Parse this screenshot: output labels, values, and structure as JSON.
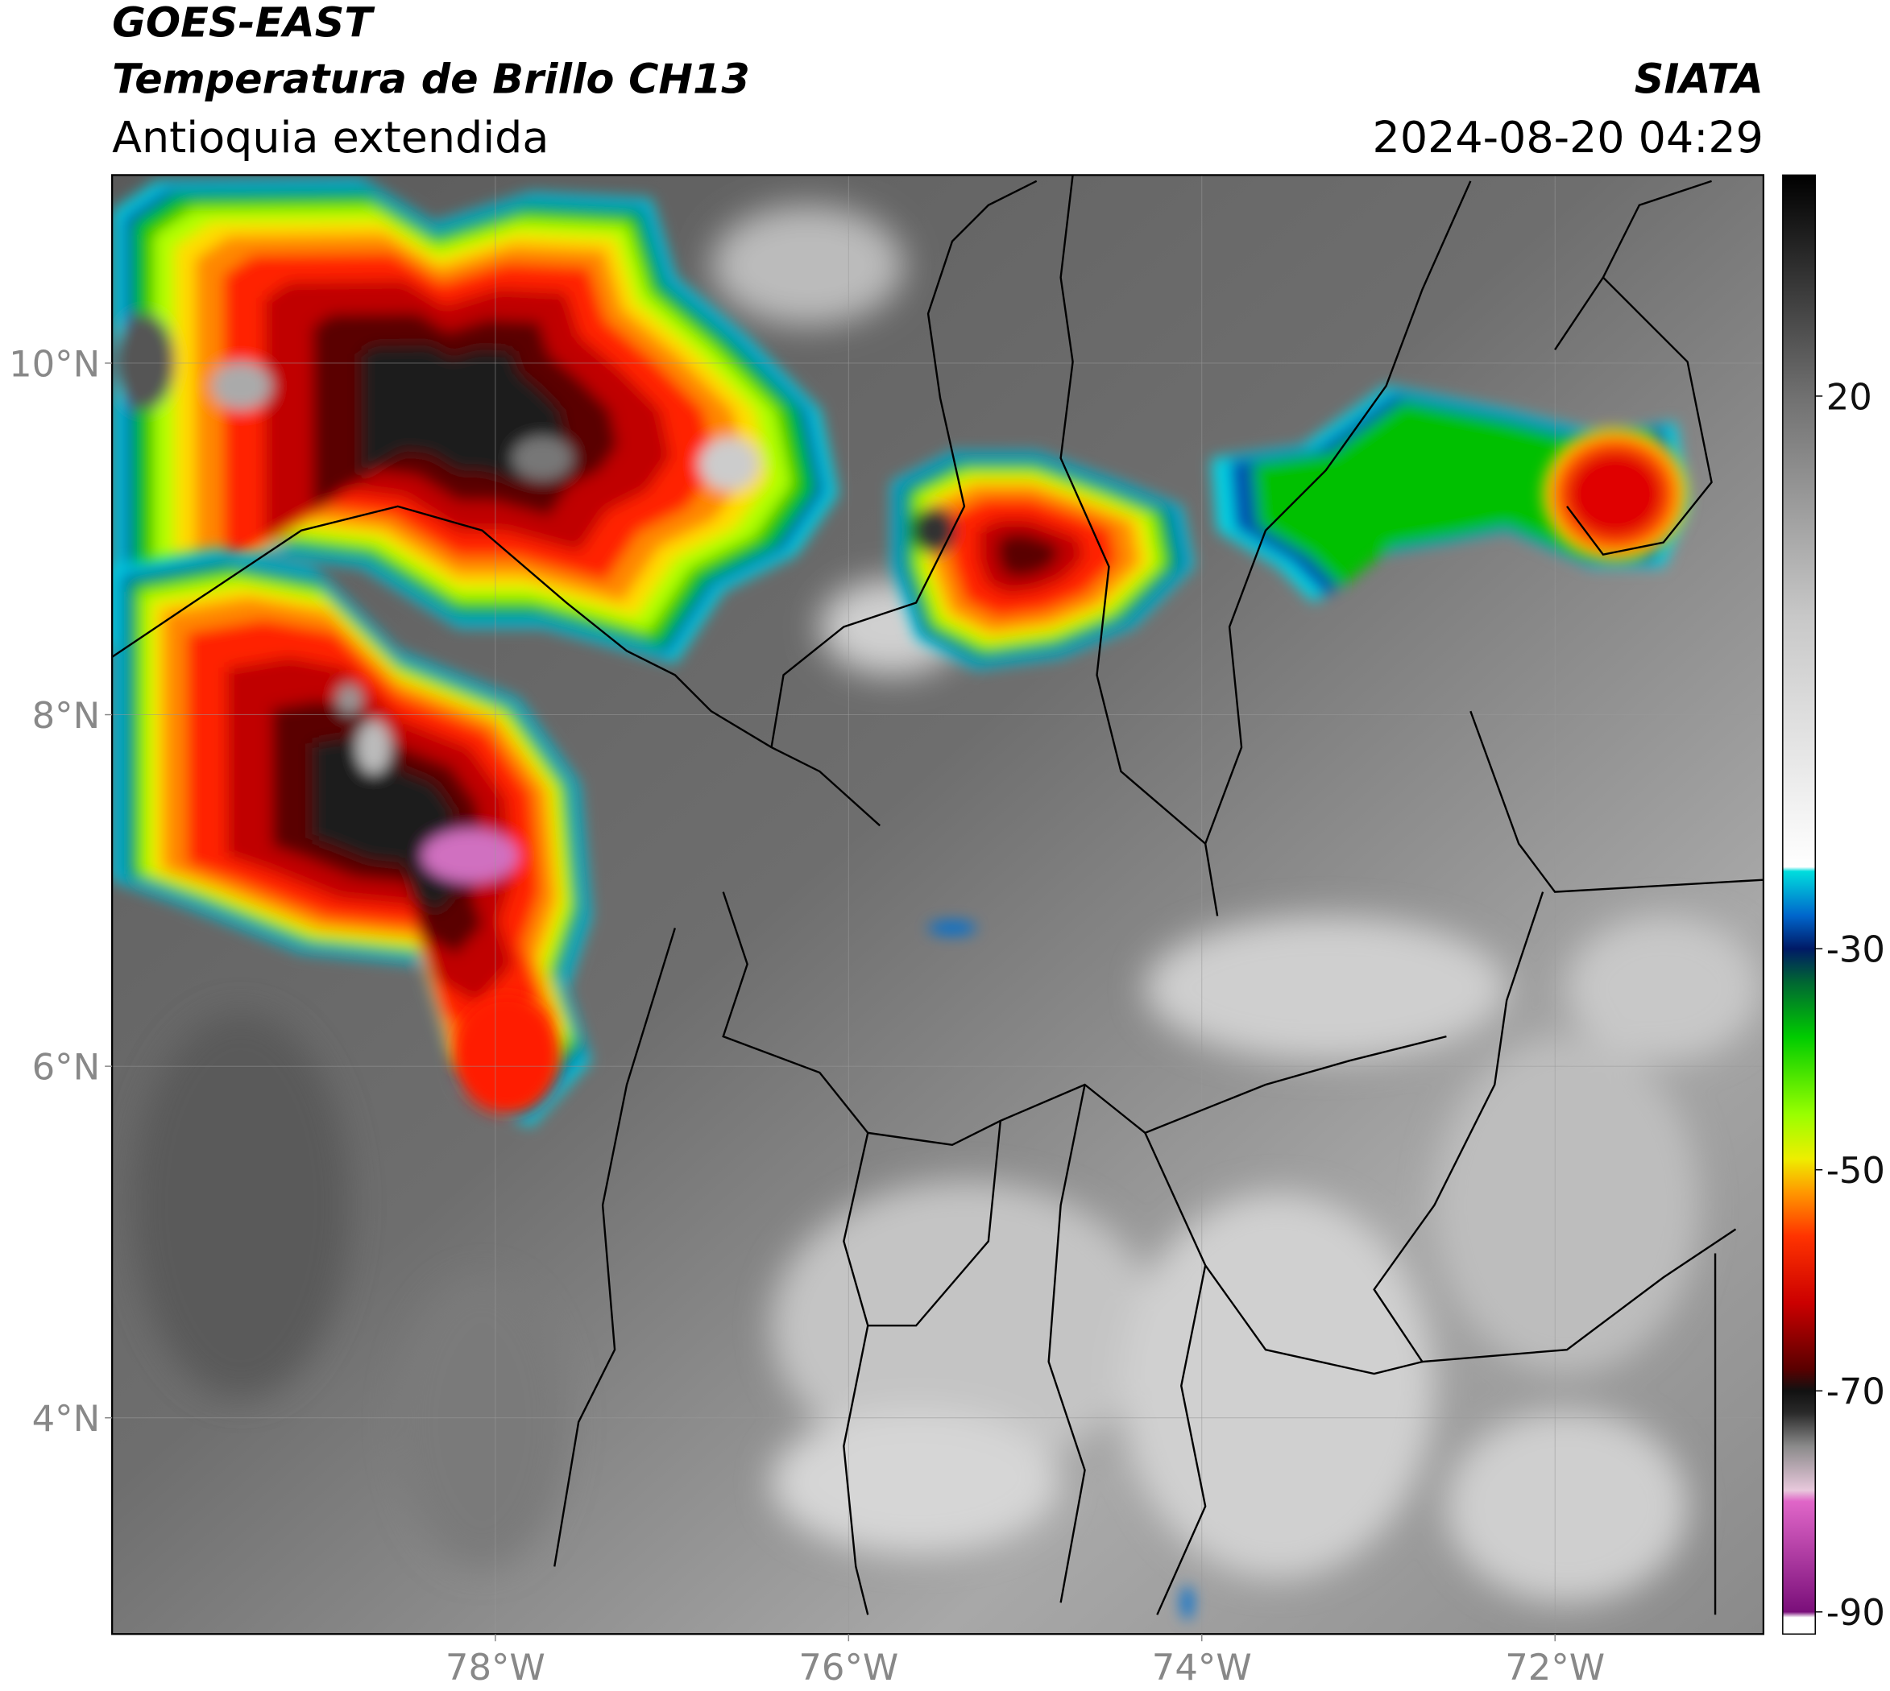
{
  "header": {
    "satellite": "GOES-EAST",
    "product": "Temperatura de Brillo CH13",
    "region": "Antioquia extendida",
    "agency": "SIATA",
    "datetime": "2024-08-20 04:29"
  },
  "map": {
    "xlim": [
      -80.17,
      -70.82
    ],
    "ylim": [
      2.77,
      11.07
    ],
    "xticks": [
      {
        "value": -78,
        "label": "78°W"
      },
      {
        "value": -76,
        "label": "76°W"
      },
      {
        "value": -74,
        "label": "74°W"
      },
      {
        "value": -72,
        "label": "72°W"
      }
    ],
    "yticks": [
      {
        "value": 4,
        "label": "4°N"
      },
      {
        "value": 6,
        "label": "6°N"
      },
      {
        "value": 8,
        "label": "8°N"
      },
      {
        "value": 10,
        "label": "10°N"
      }
    ],
    "grid": true
  },
  "colorbar": {
    "lim": [
      -92,
      40
    ],
    "ticks": [
      20,
      -30,
      -50,
      -70,
      -90
    ],
    "stops": [
      [
        -92,
        "#ffffff"
      ],
      [
        -90.5,
        "#ffffff"
      ],
      [
        -90,
        "#7a0f7a"
      ],
      [
        -80,
        "#e066c8"
      ],
      [
        -79,
        "#e8c8dc"
      ],
      [
        -75,
        "#8a8a8a"
      ],
      [
        -72,
        "#2a2a2a"
      ],
      [
        -70,
        "#111111"
      ],
      [
        -68,
        "#5a0000"
      ],
      [
        -62,
        "#cc0000"
      ],
      [
        -56,
        "#ff3300"
      ],
      [
        -52,
        "#ff9900"
      ],
      [
        -49,
        "#eeee00"
      ],
      [
        -45,
        "#99ff00"
      ],
      [
        -38,
        "#00cc00"
      ],
      [
        -33,
        "#006633"
      ],
      [
        -30,
        "#001a66"
      ],
      [
        -27,
        "#0066cc"
      ],
      [
        -23,
        "#00dddd"
      ],
      [
        -22.6,
        "#ffffff"
      ],
      [
        0,
        "#c8c8c8"
      ],
      [
        20,
        "#707070"
      ],
      [
        40,
        "#000000"
      ]
    ]
  }
}
